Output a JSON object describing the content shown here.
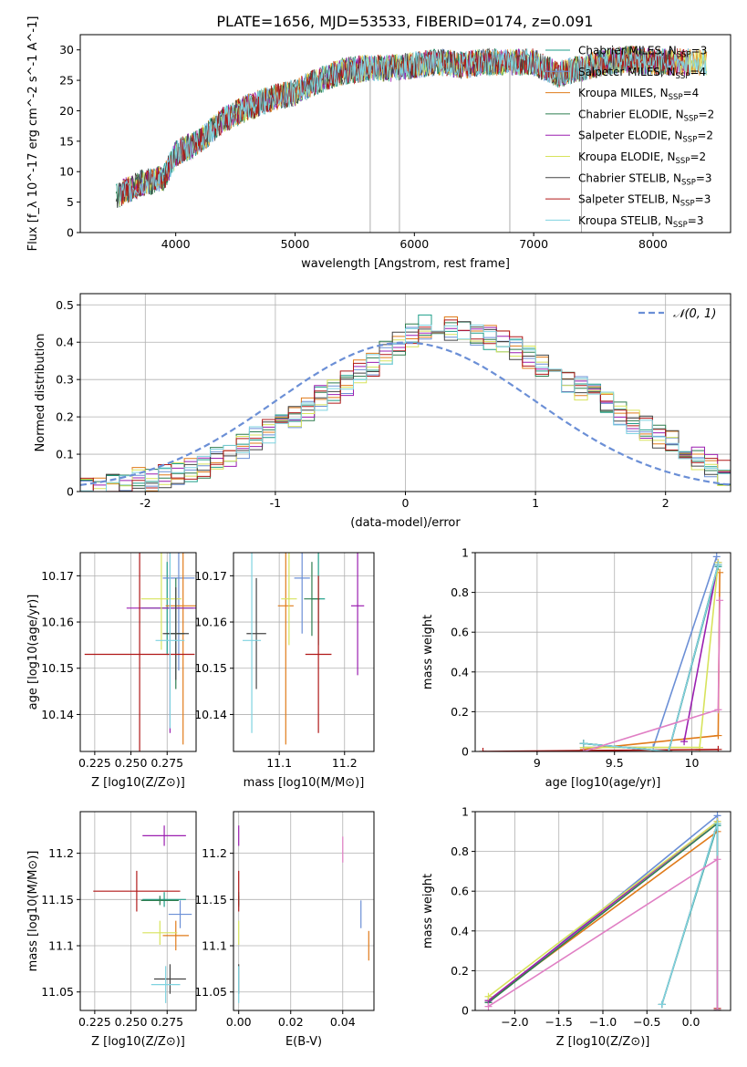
{
  "figure_title": "PLATE=1656, MJD=53533, FIBERID=0174, z=0.091",
  "series": [
    {
      "name": "Chabrier MILES",
      "nssp": "3",
      "color": "#1f9e89"
    },
    {
      "name": "Salpeter MILES",
      "nssp": "4",
      "color": "#6b8fd6"
    },
    {
      "name": "Kroupa MILES",
      "nssp": "4",
      "color": "#e07b1a"
    },
    {
      "name": "Chabrier ELODIE",
      "nssp": "2",
      "color": "#2e7d4f"
    },
    {
      "name": "Salpeter ELODIE",
      "nssp": "2",
      "color": "#9b1fb0"
    },
    {
      "name": "Kroupa ELODIE",
      "nssp": "2",
      "color": "#d7e35c"
    },
    {
      "name": "Chabrier STELIB",
      "nssp": "3",
      "color": "#444444"
    },
    {
      "name": "Salpeter STELIB",
      "nssp": "3",
      "color": "#b01818"
    },
    {
      "name": "Kroupa STELIB",
      "nssp": "3",
      "color": "#7fd3e0"
    }
  ],
  "chart_data": [
    {
      "id": "spectrum",
      "type": "line",
      "xlabel": "wavelength [Angstrom, rest frame]",
      "ylabel": "Flux [f_λ 10^-17 erg cm^-2 s^-1 A^-1]",
      "xlim": [
        3200,
        8650
      ],
      "ylim": [
        0,
        32.5
      ],
      "xticks": [
        4000,
        5000,
        6000,
        7000,
        8000
      ],
      "yticks": [
        0,
        5,
        10,
        15,
        20,
        25,
        30
      ],
      "continuum_x": [
        3500,
        3700,
        3900,
        4000,
        4200,
        4400,
        4600,
        4800,
        5000,
        5200,
        5400,
        5600,
        5800,
        6000,
        6200,
        6400,
        6600,
        6800,
        7000,
        7200,
        7400,
        7600,
        7800,
        8000,
        8200,
        8400
      ],
      "continuum_y": [
        6,
        8,
        9,
        13,
        15,
        18.5,
        20.5,
        22,
        23,
        25,
        26.5,
        27,
        27,
        27.5,
        28,
        27.5,
        28,
        28,
        28,
        26,
        27,
        28,
        28.5,
        28,
        28,
        28
      ],
      "legend_position": "upper right",
      "grid": false
    },
    {
      "id": "residuals",
      "type": "histogram",
      "xlabel": "(data-model)/error",
      "ylabel": "Normed distribution",
      "xlim": [
        -2.5,
        2.5
      ],
      "ylim": [
        0,
        0.53
      ],
      "xticks": [
        -2,
        -1,
        0,
        1,
        2
      ],
      "yticks": [
        0.0,
        0.1,
        0.2,
        0.3,
        0.4,
        0.5
      ],
      "bin_width": 0.1,
      "bin_start": -2.5,
      "base_values": [
        0.01,
        0.01,
        0.015,
        0.02,
        0.03,
        0.03,
        0.04,
        0.045,
        0.055,
        0.07,
        0.09,
        0.1,
        0.12,
        0.14,
        0.16,
        0.18,
        0.2,
        0.22,
        0.25,
        0.27,
        0.29,
        0.32,
        0.34,
        0.37,
        0.4,
        0.42,
        0.44,
        0.45,
        0.44,
        0.43,
        0.42,
        0.41,
        0.4,
        0.38,
        0.36,
        0.34,
        0.32,
        0.3,
        0.28,
        0.26,
        0.24,
        0.21,
        0.19,
        0.17,
        0.15,
        0.13,
        0.11,
        0.09,
        0.07,
        0.05
      ],
      "normal_label": "𝒩(0, 1)",
      "normal_color": "#6b8fd6",
      "legend_position": "upper right",
      "grid": true
    },
    {
      "id": "z_age",
      "type": "errorbar",
      "xlabel": "Z [log10(Z/Z⊙)]",
      "ylabel": "age [log10(age/yr)]",
      "xlim": [
        0.215,
        0.295
      ],
      "ylim": [
        10.132,
        10.175
      ],
      "xticks": [
        0.225,
        0.25,
        0.275
      ],
      "xticklabels": [
        "0.225",
        "0.250",
        "0.275"
      ],
      "yticks": [
        10.14,
        10.15,
        10.16,
        10.17
      ],
      "points": [
        {
          "x": 0.275,
          "y": 10.163,
          "xerr": 0.018,
          "yerr": 0.01
        },
        {
          "x": 0.283,
          "y": 10.1695,
          "xerr": 0.011,
          "yerr": 0.02
        },
        {
          "x": 0.286,
          "y": 10.1635,
          "xerr": 0.012,
          "yerr": 0.03
        },
        {
          "x": 0.281,
          "y": 10.1575,
          "xerr": 0.006,
          "yerr": 0.012
        },
        {
          "x": 0.277,
          "y": 10.163,
          "xerr": 0.03,
          "yerr": 0.027
        },
        {
          "x": 0.271,
          "y": 10.165,
          "xerr": 0.014,
          "yerr": 0.011
        },
        {
          "x": 0.281,
          "y": 10.1575,
          "xerr": 0.009,
          "yerr": 0.01
        },
        {
          "x": 0.256,
          "y": 10.153,
          "xerr": 0.038,
          "yerr": 0.022
        },
        {
          "x": 0.277,
          "y": 10.156,
          "xerr": 0.01,
          "yerr": 0.019
        }
      ],
      "grid": true
    },
    {
      "id": "mass_age",
      "type": "errorbar",
      "xlabel": "mass [log10(M/M⊙)]",
      "ylabel": "",
      "xlim": [
        11.03,
        11.245
      ],
      "ylim": [
        10.132,
        10.175
      ],
      "xticks": [
        11.1,
        11.2
      ],
      "yticks": [
        10.14,
        10.15,
        10.16,
        10.17
      ],
      "points": [
        {
          "x": 11.16,
          "y": 10.165,
          "xerr": 0.01,
          "yerr": 0.01
        },
        {
          "x": 11.135,
          "y": 10.1695,
          "xerr": 0.012,
          "yerr": 0.012
        },
        {
          "x": 11.11,
          "y": 10.1635,
          "xerr": 0.012,
          "yerr": 0.03
        },
        {
          "x": 11.15,
          "y": 10.165,
          "xerr": 0.012,
          "yerr": 0.008
        },
        {
          "x": 11.22,
          "y": 10.1635,
          "xerr": 0.01,
          "yerr": 0.015
        },
        {
          "x": 11.115,
          "y": 10.165,
          "xerr": 0.012,
          "yerr": 0.01
        },
        {
          "x": 11.065,
          "y": 10.1575,
          "xerr": 0.015,
          "yerr": 0.012
        },
        {
          "x": 11.16,
          "y": 10.153,
          "xerr": 0.02,
          "yerr": 0.017
        },
        {
          "x": 11.058,
          "y": 10.156,
          "xerr": 0.014,
          "yerr": 0.02
        }
      ],
      "grid": true
    },
    {
      "id": "age_weight",
      "type": "line",
      "xlabel": "age [log10(age/yr)]",
      "ylabel": "mass weight",
      "xlim": [
        8.6,
        10.25
      ],
      "ylim": [
        0,
        1.0
      ],
      "xticks": [
        9.0,
        9.5,
        10.0
      ],
      "yticks": [
        0.0,
        0.2,
        0.4,
        0.6,
        0.8,
        1.0
      ],
      "lines": [
        {
          "x": [
            9.3,
            9.85,
            10.17
          ],
          "y": [
            0.04,
            0.0,
            0.93
          ]
        },
        {
          "x": [
            9.3,
            9.75,
            10.16
          ],
          "y": [
            0.02,
            0.02,
            0.98
          ]
        },
        {
          "x": [
            9.3,
            10.17,
            10.18
          ],
          "y": [
            0.01,
            0.08,
            0.9
          ]
        },
        {
          "x": [
            9.3,
            9.85,
            10.17
          ],
          "y": [
            0.04,
            0.0,
            0.94
          ]
        },
        {
          "x": [
            9.95,
            10.17
          ],
          "y": [
            0.05,
            0.95
          ]
        },
        {
          "x": [
            9.3,
            10.05,
            10.17
          ],
          "y": [
            0.02,
            0.02,
            0.95
          ]
        },
        {
          "x": [
            9.3,
            9.85,
            10.17
          ],
          "y": [
            0.04,
            0.0,
            0.94
          ]
        },
        {
          "x": [
            8.65,
            10.17
          ],
          "y": [
            0.0,
            0.01
          ]
        },
        {
          "x": [
            9.3,
            9.85,
            10.17
          ],
          "y": [
            0.04,
            0.0,
            0.94
          ]
        }
      ],
      "extra_lines": [
        {
          "x": [
            9.3,
            10.17,
            10.18
          ],
          "y": [
            0.0,
            0.21,
            0.76
          ],
          "color": "#e07fc4"
        }
      ],
      "grid": true
    },
    {
      "id": "z_mass",
      "type": "errorbar",
      "xlabel": "Z [log10(Z/Z⊙)]",
      "ylabel": "mass [log10(M/M⊙)]",
      "xlim": [
        0.215,
        0.295
      ],
      "ylim": [
        11.03,
        11.245
      ],
      "xticks": [
        0.225,
        0.25,
        0.275
      ],
      "xticklabels": [
        "0.225",
        "0.250",
        "0.275"
      ],
      "yticks": [
        11.05,
        11.1,
        11.15,
        11.2
      ],
      "points": [
        {
          "x": 0.273,
          "y": 11.15,
          "xerr": 0.015,
          "yerr": 0.008
        },
        {
          "x": 0.284,
          "y": 11.134,
          "xerr": 0.008,
          "yerr": 0.015
        },
        {
          "x": 0.281,
          "y": 11.111,
          "xerr": 0.009,
          "yerr": 0.016
        },
        {
          "x": 0.27,
          "y": 11.149,
          "xerr": 0.013,
          "yerr": 0.005
        },
        {
          "x": 0.273,
          "y": 11.219,
          "xerr": 0.015,
          "yerr": 0.011
        },
        {
          "x": 0.27,
          "y": 11.114,
          "xerr": 0.012,
          "yerr": 0.013
        },
        {
          "x": 0.277,
          "y": 11.064,
          "xerr": 0.011,
          "yerr": 0.016
        },
        {
          "x": 0.254,
          "y": 11.159,
          "xerr": 0.03,
          "yerr": 0.022
        },
        {
          "x": 0.274,
          "y": 11.058,
          "xerr": 0.01,
          "yerr": 0.02
        }
      ],
      "grid": true
    },
    {
      "id": "ebv_mass",
      "type": "errorbar",
      "xlabel": "E(B-V)",
      "ylabel": "",
      "xlim": [
        -0.002,
        0.052
      ],
      "ylim": [
        11.03,
        11.245
      ],
      "xticks": [
        0.0,
        0.02,
        0.04
      ],
      "xticklabels": [
        "0.00",
        "0.02",
        "0.04"
      ],
      "yticks": [
        11.05,
        11.1,
        11.15,
        11.2
      ],
      "points": [
        {
          "x": 0.0,
          "y": 11.15,
          "xerr": 0,
          "yerr": 0.008
        },
        {
          "x": 0.047,
          "y": 11.134,
          "xerr": 0,
          "yerr": 0.015
        },
        {
          "x": 0.05,
          "y": 11.1,
          "xerr": 0,
          "yerr": 0.016
        },
        {
          "x": 0.0,
          "y": 11.149,
          "xerr": 0,
          "yerr": 0.005
        },
        {
          "x": 0.0,
          "y": 11.219,
          "xerr": 0,
          "yerr": 0.011
        },
        {
          "x": 0.0,
          "y": 11.114,
          "xerr": 0,
          "yerr": 0.013
        },
        {
          "x": 0.0,
          "y": 11.064,
          "xerr": 0,
          "yerr": 0.016
        },
        {
          "x": 0.0,
          "y": 11.159,
          "xerr": 0,
          "yerr": 0.022
        },
        {
          "x": 0.0,
          "y": 11.058,
          "xerr": 0,
          "yerr": 0.02
        }
      ],
      "extra_points": [
        {
          "x": 0.04,
          "y": 11.204,
          "xerr": 0,
          "yerr": 0.014,
          "color": "#e07fc4"
        }
      ],
      "grid": true
    },
    {
      "id": "z_weight",
      "type": "line",
      "xlabel": "Z [log10(Z/Z⊙)]",
      "ylabel": "mass weight",
      "xlim": [
        -2.45,
        0.45
      ],
      "ylim": [
        0,
        1.0
      ],
      "xticks": [
        -2.0,
        -1.5,
        -1.0,
        -0.5,
        0.0
      ],
      "xticklabels": [
        "−2.0",
        "−1.5",
        "−1.0",
        "−0.5",
        "0.0"
      ],
      "yticks": [
        0.0,
        0.2,
        0.4,
        0.6,
        0.8,
        1.0
      ],
      "lines": [
        {
          "x": [
            -0.33,
            0.3,
            0.3
          ],
          "y": [
            0.03,
            0.93,
            0.0
          ]
        },
        {
          "x": [
            -2.3,
            0.3,
            0.3
          ],
          "y": [
            0.04,
            0.98,
            0.0
          ]
        },
        {
          "x": [
            -2.3,
            0.3,
            0.3
          ],
          "y": [
            0.05,
            0.9,
            0.0
          ]
        },
        {
          "x": [
            -2.3,
            0.3,
            0.3
          ],
          "y": [
            0.04,
            0.94,
            0.0
          ]
        },
        {
          "x": [
            -2.3,
            0.3,
            0.3
          ],
          "y": [
            0.05,
            0.95,
            0.0
          ]
        },
        {
          "x": [
            -2.3,
            0.3,
            0.3
          ],
          "y": [
            0.07,
            0.95,
            0.0
          ]
        },
        {
          "x": [
            -0.33,
            0.3,
            0.3
          ],
          "y": [
            0.03,
            0.94,
            0.0
          ]
        },
        {
          "x": [
            0.3,
            0.3
          ],
          "y": [
            0.0,
            0.01
          ]
        },
        {
          "x": [
            -0.33,
            0.3,
            0.3
          ],
          "y": [
            0.03,
            0.94,
            0.0
          ]
        }
      ],
      "extra_lines": [
        {
          "x": [
            -2.3,
            0.3,
            0.3
          ],
          "y": [
            0.02,
            0.76,
            0.0
          ],
          "color": "#e07fc4"
        }
      ],
      "grid": true
    }
  ]
}
